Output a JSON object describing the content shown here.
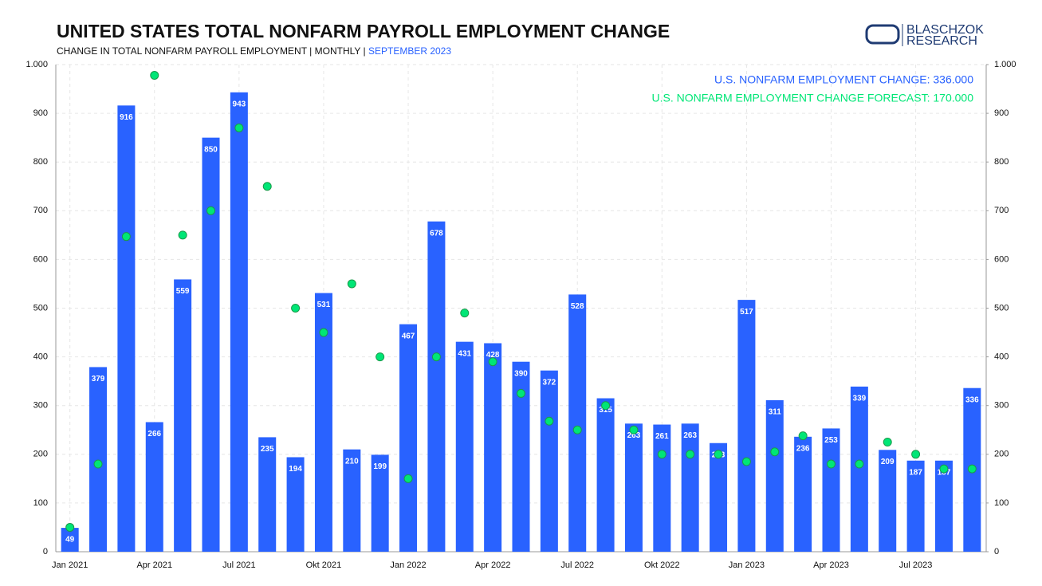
{
  "chart_data": {
    "type": "bar",
    "title": "UNITED STATES TOTAL NONFARM PAYROLL EMPLOYMENT CHANGE",
    "subtitle": "CHANGE IN TOTAL NONFARM PAYROLL EMPLOYMENT | MONTHLY | ",
    "subtitle_date": "SEPTEMBER 2023",
    "logo": [
      "BLASCHZOK",
      "RESEARCH"
    ],
    "annotations": [
      {
        "text": "U.S. NONFARM EMPLOYMENT CHANGE: 336.000",
        "color": "#2962ff"
      },
      {
        "text": "U.S. NONFARM EMPLOYMENT CHANGE FORECAST: 170.000",
        "color": "#00e676"
      }
    ],
    "categories": [
      "Jan 2021",
      null,
      null,
      "Apr 2021",
      null,
      null,
      "Jul 2021",
      null,
      null,
      "Okt 2021",
      null,
      null,
      "Jan 2022",
      null,
      null,
      "Apr 2022",
      null,
      null,
      "Jul 2022",
      null,
      null,
      "Okt 2022",
      null,
      null,
      "Jan 2023",
      null,
      null,
      "Apr 2023",
      null,
      null,
      "Jul 2023",
      null,
      null
    ],
    "series": [
      {
        "type": "bar",
        "color": "#2962ff",
        "values": [
          49,
          379,
          916,
          266,
          559,
          850,
          943,
          235,
          194,
          531,
          210,
          199,
          467,
          678,
          431,
          428,
          390,
          372,
          528,
          315,
          263,
          261,
          263,
          223,
          517,
          311,
          236,
          253,
          339,
          209,
          187,
          187,
          336
        ]
      },
      {
        "type": "scatter",
        "color": "#00e676",
        "values": [
          50,
          180,
          647,
          978,
          650,
          700,
          870,
          750,
          500,
          450,
          550,
          400,
          150,
          400,
          490,
          390,
          325,
          268,
          250,
          300,
          250,
          200,
          200,
          200,
          185,
          205,
          238,
          180,
          180,
          225,
          200,
          170,
          170
        ]
      }
    ],
    "ylim": [
      0,
      1000
    ],
    "yticks": [
      0,
      100,
      200,
      300,
      400,
      500,
      600,
      700,
      800,
      900,
      {
        "value": 1000,
        "label": "1.000"
      }
    ],
    "y2lim": [
      0,
      1000
    ],
    "y2ticks": [
      0,
      100,
      200,
      300,
      400,
      500,
      600,
      700,
      800,
      900,
      {
        "value": 1000,
        "label": "1.000"
      }
    ],
    "grid": true
  }
}
